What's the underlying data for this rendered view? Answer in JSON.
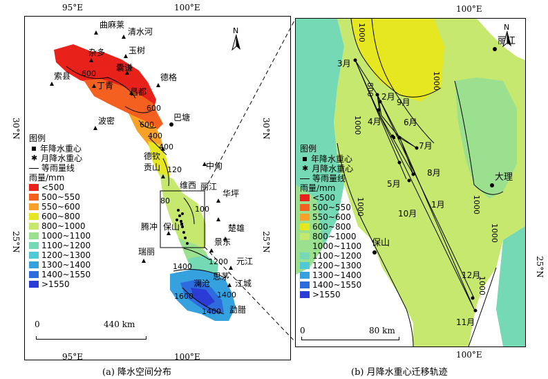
{
  "captions": {
    "a": "(a) 降水空间分布",
    "b": "(b) 月降水重心迁移轨迹"
  },
  "panel_a": {
    "ticks_top": [
      "95°E",
      "100°E"
    ],
    "ticks_bottom": [
      "95°E",
      "100°E"
    ],
    "ticks_left": [
      "30°N",
      "25°N"
    ],
    "ticks_right": [
      "30°N",
      "25°N"
    ],
    "north": "N",
    "places": [
      "曲麻莱",
      "清水河",
      "玉树",
      "杂多",
      "囊谦",
      "索县",
      "丁青",
      "昌都",
      "德格",
      "波密",
      "巴塘",
      "德钦",
      "贡山",
      "中甸",
      "维西",
      "丽江",
      "华坪",
      "腾冲",
      "保山",
      "楚雄",
      "景东",
      "瑞丽",
      "元江",
      "思茅",
      "澜沧",
      "江城",
      "勐腊"
    ],
    "isolines": [
      "600",
      "600",
      "600",
      "400",
      "400",
      "120",
      "80",
      "100",
      "1400",
      "1200",
      "1600",
      "1400",
      "1400"
    ],
    "scale": {
      "zero": "0",
      "dist": "440 km"
    }
  },
  "panel_b": {
    "ticks_top": [
      "100°E"
    ],
    "ticks_bottom": [
      "100°E"
    ],
    "ticks_right": [
      "25°N"
    ],
    "places": [
      "丽江",
      "大理",
      "保山"
    ],
    "months": [
      "3月",
      "2月",
      "9月",
      "4月",
      "6月",
      "7月",
      "8月",
      "5月",
      "1月",
      "10月",
      "12月",
      "11月"
    ],
    "isolines": [
      "1000",
      "1000",
      "800",
      "1000",
      "1000",
      "1000",
      "1000",
      "1000"
    ],
    "scale": {
      "zero": "0",
      "dist": "80 km"
    }
  },
  "legend": {
    "title": "图例",
    "annual": "年降水重心",
    "monthly": "月降水重心",
    "isoline": "等雨量线",
    "unit": "雨量/mm",
    "classes": [
      {
        "label": "<500",
        "color": "#e8211b"
      },
      {
        "label": "500~550",
        "color": "#f4601f"
      },
      {
        "label": "550~600",
        "color": "#f7a128"
      },
      {
        "label": "600~800",
        "color": "#e6e621"
      },
      {
        "label": "800~1000",
        "color": "#c6e86e"
      },
      {
        "label": "1000~1100",
        "color": "#9be08f"
      },
      {
        "label": "1100~1200",
        "color": "#74d9b4"
      },
      {
        "label": "1200~1300",
        "color": "#4fc9d6"
      },
      {
        "label": "1300~1400",
        "color": "#35a1df"
      },
      {
        "label": "1400~1550",
        "color": "#2e6bdc"
      },
      {
        "label": ">1550",
        "color": "#2b3bd6"
      }
    ]
  }
}
